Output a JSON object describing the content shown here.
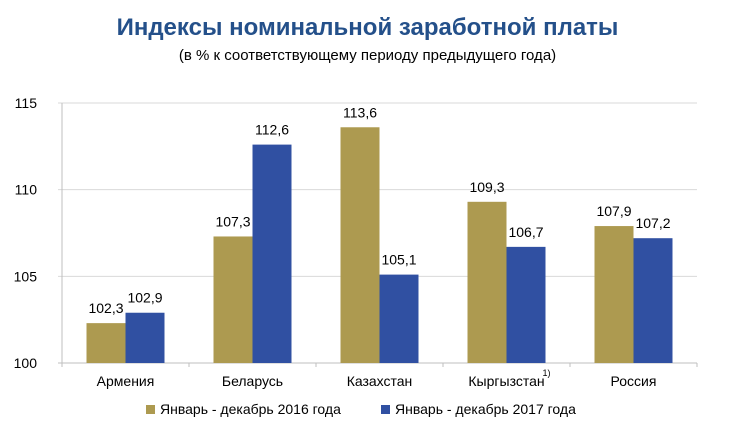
{
  "chart_data": {
    "type": "bar",
    "title": "Индексы номинальной заработной платы",
    "subtitle": "(в % к соответствующему периоду предыдущего года)",
    "categories": [
      "Армения",
      "Беларусь",
      "Казахстан",
      "Кыргызстан",
      "Россия"
    ],
    "category_footnotes": [
      "",
      "",
      "",
      "1)",
      ""
    ],
    "series": [
      {
        "name": "Январь - декабрь 2016 года",
        "color": "#ad9a50",
        "values": [
          102.3,
          107.3,
          113.6,
          109.3,
          107.9
        ],
        "labels": [
          "102,3",
          "107,3",
          "113,6",
          "109,3",
          "107,9"
        ]
      },
      {
        "name": "Январь - декабрь 2017 года",
        "color": "#3050a2",
        "values": [
          102.9,
          112.6,
          105.1,
          106.7,
          107.2
        ],
        "labels": [
          "102,9",
          "112,6",
          "105,1",
          "106,7",
          "107,2"
        ]
      }
    ],
    "ylim": [
      100,
      115
    ],
    "yticks": [
      100,
      105,
      110,
      115
    ],
    "grid": true,
    "legend": "bottom"
  }
}
